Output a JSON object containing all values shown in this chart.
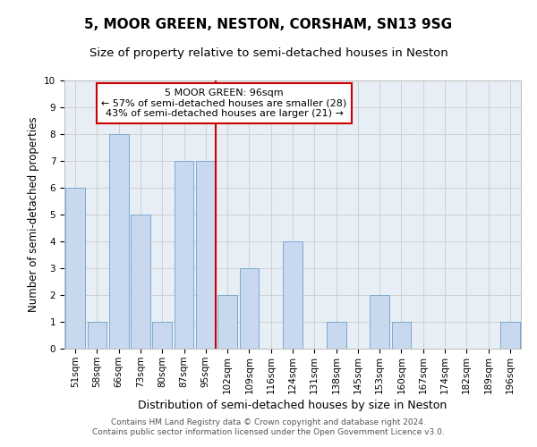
{
  "title": "5, MOOR GREEN, NESTON, CORSHAM, SN13 9SG",
  "subtitle": "Size of property relative to semi-detached houses in Neston",
  "xlabel": "Distribution of semi-detached houses by size in Neston",
  "ylabel": "Number of semi-detached properties",
  "categories": [
    "51sqm",
    "58sqm",
    "66sqm",
    "73sqm",
    "80sqm",
    "87sqm",
    "95sqm",
    "102sqm",
    "109sqm",
    "116sqm",
    "124sqm",
    "131sqm",
    "138sqm",
    "145sqm",
    "153sqm",
    "160sqm",
    "167sqm",
    "174sqm",
    "182sqm",
    "189sqm",
    "196sqm"
  ],
  "values": [
    6,
    1,
    8,
    5,
    1,
    7,
    7,
    2,
    3,
    0,
    4,
    0,
    1,
    0,
    2,
    1,
    0,
    0,
    0,
    0,
    1
  ],
  "bar_color": "#c8d8ee",
  "bar_edge_color": "#7aaad0",
  "highlight_index": 6,
  "highlight_line_color": "#cc0000",
  "annotation_text": "5 MOOR GREEN: 96sqm\n← 57% of semi-detached houses are smaller (28)\n43% of semi-detached houses are larger (21) →",
  "annotation_box_color": "#ffffff",
  "annotation_box_edge": "#cc0000",
  "ylim": [
    0,
    10
  ],
  "yticks": [
    0,
    1,
    2,
    3,
    4,
    5,
    6,
    7,
    8,
    9,
    10
  ],
  "grid_color": "#cccccc",
  "bg_color": "#e8eef5",
  "footer": "Contains HM Land Registry data © Crown copyright and database right 2024.\nContains public sector information licensed under the Open Government Licence v3.0.",
  "title_fontsize": 11,
  "subtitle_fontsize": 9.5,
  "xlabel_fontsize": 9,
  "ylabel_fontsize": 8.5,
  "tick_fontsize": 7.5,
  "annotation_fontsize": 8,
  "footer_fontsize": 6.5
}
